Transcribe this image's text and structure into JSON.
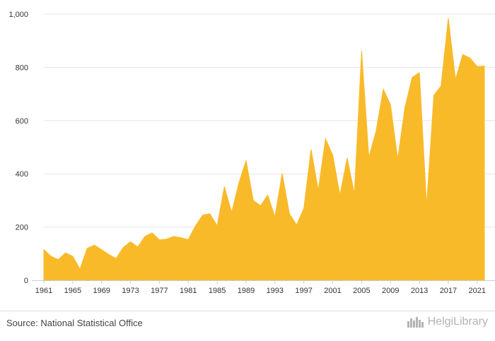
{
  "chart_data": {
    "type": "area",
    "x": [
      1961,
      1962,
      1963,
      1964,
      1965,
      1966,
      1967,
      1968,
      1969,
      1970,
      1971,
      1972,
      1973,
      1974,
      1975,
      1976,
      1977,
      1978,
      1979,
      1980,
      1981,
      1982,
      1983,
      1984,
      1985,
      1986,
      1987,
      1988,
      1989,
      1990,
      1991,
      1992,
      1993,
      1994,
      1995,
      1996,
      1997,
      1998,
      1999,
      2000,
      2001,
      2002,
      2003,
      2004,
      2005,
      2006,
      2007,
      2008,
      2009,
      2010,
      2011,
      2012,
      2013,
      2014,
      2015,
      2016,
      2017,
      2018,
      2019,
      2020,
      2021,
      2022
    ],
    "values": [
      115,
      90,
      78,
      103,
      90,
      42,
      120,
      132,
      115,
      97,
      82,
      123,
      145,
      125,
      165,
      178,
      152,
      155,
      165,
      160,
      153,
      205,
      245,
      250,
      205,
      352,
      255,
      365,
      450,
      300,
      280,
      320,
      238,
      402,
      250,
      208,
      270,
      492,
      338,
      532,
      470,
      320,
      460,
      325,
      862,
      462,
      560,
      718,
      660,
      455,
      650,
      762,
      780,
      280,
      695,
      730,
      985,
      755,
      848,
      835,
      803,
      805
    ],
    "xticks": [
      "1961",
      "1965",
      "1969",
      "1973",
      "1977",
      "1981",
      "1985",
      "1989",
      "1993",
      "1997",
      "2001",
      "2005",
      "2009",
      "2013",
      "2017",
      "2021"
    ],
    "yticks": [
      "0",
      "200",
      "400",
      "600",
      "800",
      "1,000"
    ],
    "ylim": [
      0,
      1000
    ],
    "grid": true,
    "color": "#F9BA2A"
  },
  "footer": {
    "source": "Source: National Statistical Office",
    "logo_text": "HelgiLibrary",
    "logo_icon": "city-skyline-icon"
  }
}
